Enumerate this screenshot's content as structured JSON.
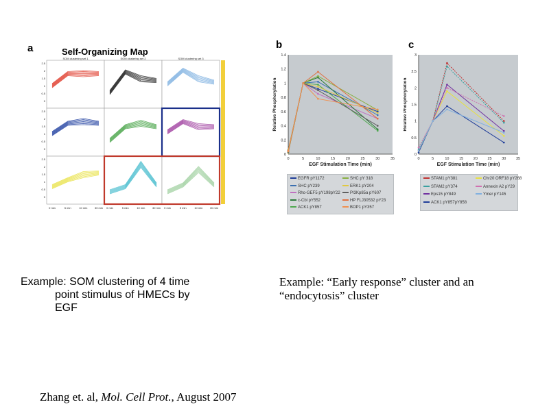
{
  "panel_a": {
    "letter": "a",
    "title": "Self-Organizing Map",
    "column_headers": [
      "SOM clustering set 1",
      "SOM clustering set 2",
      "SOM clustering set 3"
    ],
    "y_ticks": [
      "2.5",
      "2",
      "1.5",
      "1",
      "0.5",
      "0"
    ],
    "x_ticks": [
      "0 min",
      "5 min",
      "10 min",
      "30 min"
    ]
  },
  "panel_b": {
    "letter": "b"
  },
  "panel_c": {
    "letter": "c"
  },
  "chart_data": [
    {
      "type": "line",
      "panel": "b",
      "xlabel": "EGF Stimulation Time (min)",
      "ylabel": "Relative Phosphorylation",
      "xlim": [
        0,
        35
      ],
      "ylim": [
        0,
        1.4
      ],
      "x_ticks": [
        0,
        5,
        10,
        15,
        20,
        25,
        30,
        35
      ],
      "y_ticks": [
        0,
        0.2,
        0.4,
        0.6,
        0.8,
        1,
        1.2,
        1.4
      ],
      "x": [
        0,
        5,
        10,
        30
      ],
      "series": [
        {
          "name": "EGFR pY1172",
          "color": "#1f3d99",
          "values": [
            0.05,
            1.0,
            0.92,
            0.6
          ]
        },
        {
          "name": "SHC pY239",
          "color": "#3a6fb0",
          "values": [
            0.02,
            1.0,
            1.02,
            0.55
          ]
        },
        {
          "name": "Rho-GEF5 pY198pY22",
          "color": "#c070c0",
          "values": [
            0.05,
            1.0,
            0.85,
            0.5
          ]
        },
        {
          "name": "c-Cbl pY552",
          "color": "#2a7a3a",
          "values": [
            0.03,
            1.0,
            1.08,
            0.35
          ]
        },
        {
          "name": "ACK1 pY857",
          "color": "#4ea84e",
          "values": [
            0.04,
            1.0,
            0.98,
            0.33
          ]
        },
        {
          "name": "SHC pY 318",
          "color": "#88b040",
          "values": [
            0.06,
            1.0,
            1.1,
            0.62
          ]
        },
        {
          "name": "ERK1 pY204",
          "color": "#e0c840",
          "values": [
            0.02,
            1.0,
            0.95,
            0.58
          ]
        },
        {
          "name": "PI3Kp85a pY607",
          "color": "#606060",
          "values": [
            0.03,
            1.0,
            0.9,
            0.4
          ]
        },
        {
          "name": "HP FLJ30532 pY23",
          "color": "#e07040",
          "values": [
            0.05,
            1.0,
            1.16,
            0.5
          ]
        },
        {
          "name": "BOP1 pY357",
          "color": "#f09050",
          "values": [
            0.04,
            1.0,
            0.78,
            0.63
          ]
        }
      ]
    },
    {
      "type": "line",
      "panel": "c",
      "xlabel": "EGF Stimulation Time (min)",
      "ylabel": "Relative Phosphorylation",
      "xlim": [
        0,
        35
      ],
      "ylim": [
        0,
        3
      ],
      "x_ticks": [
        0,
        5,
        10,
        15,
        20,
        25,
        30,
        35
      ],
      "y_ticks": [
        0,
        0.5,
        1,
        1.5,
        2,
        2.5,
        3
      ],
      "x": [
        0,
        5,
        10,
        30
      ],
      "series": [
        {
          "name": "STAM1 pY381",
          "color": "#c03030",
          "dashed": true,
          "values": [
            0.1,
            1.0,
            2.75,
            1.0
          ]
        },
        {
          "name": "STAM2 pY374",
          "color": "#3aa0a0",
          "dashed": true,
          "values": [
            0.15,
            1.0,
            2.65,
            0.95
          ]
        },
        {
          "name": "Eps15 pY849",
          "color": "#7030a0",
          "values": [
            0.1,
            1.0,
            2.1,
            0.7
          ]
        },
        {
          "name": "ACK1 pY857pY858",
          "color": "#1f3d99",
          "values": [
            0.05,
            1.0,
            1.45,
            0.35
          ]
        },
        {
          "name": "Chr20 ORF18 pY268",
          "color": "#e8e040",
          "values": [
            0.1,
            1.0,
            1.9,
            0.55
          ]
        },
        {
          "name": "Annexin A2 pY29",
          "color": "#d070b0",
          "dashed": true,
          "values": [
            0.2,
            1.0,
            2.0,
            1.15
          ]
        },
        {
          "name": "Ymer pY145",
          "color": "#80b0e0",
          "values": [
            0.1,
            1.0,
            1.35,
            0.65
          ]
        }
      ]
    }
  ],
  "captions": {
    "left_line1": "Example: SOM clustering of 4 time",
    "left_line2": "point stimulus of HMECs by",
    "left_line3": "EGF",
    "right": "Example: “Early response” cluster and an “endocytosis” cluster",
    "citation_pre": "Zhang et. al, ",
    "citation_journal": "Mol. Cell Prot.",
    "citation_post": ", August 2007"
  }
}
